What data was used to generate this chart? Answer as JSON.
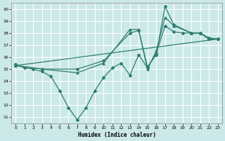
{
  "xlabel": "Humidex (Indice chaleur)",
  "background_color": "#cce9e9",
  "grid_color": "#ffffff",
  "line_color": "#2e7d6e",
  "xlim": [
    -0.5,
    23.5
  ],
  "ylim": [
    10.5,
    20.5
  ],
  "xticks": [
    0,
    1,
    2,
    3,
    4,
    5,
    6,
    7,
    8,
    9,
    10,
    11,
    12,
    13,
    14,
    15,
    16,
    17,
    18,
    19,
    20,
    21,
    22,
    23
  ],
  "yticks": [
    11,
    12,
    13,
    14,
    15,
    16,
    17,
    18,
    19,
    20
  ],
  "series1_detail": {
    "x": [
      0,
      1,
      2,
      3,
      4,
      5,
      6,
      7,
      8,
      9,
      10,
      11,
      12,
      13,
      14,
      15,
      16,
      17,
      18,
      19,
      20,
      21,
      22,
      23
    ],
    "y": [
      15.4,
      15.1,
      15.0,
      14.8,
      14.4,
      13.2,
      11.8,
      10.8,
      11.8,
      13.2,
      14.3,
      15.1,
      15.5,
      14.5,
      16.2,
      15.1,
      16.3,
      18.6,
      18.1,
      18.0,
      18.0,
      18.0,
      17.5,
      17.5
    ]
  },
  "series2_straight": {
    "x": [
      0,
      23
    ],
    "y": [
      15.3,
      17.5
    ]
  },
  "series3_smooth": {
    "x": [
      0,
      3,
      7,
      10,
      13,
      14,
      15,
      16,
      17,
      18,
      20,
      21,
      22,
      23
    ],
    "y": [
      15.3,
      15.0,
      14.7,
      15.5,
      18.3,
      18.3,
      15.0,
      16.5,
      19.3,
      18.6,
      18.0,
      18.0,
      17.5,
      17.5
    ]
  },
  "series4_mid": {
    "x": [
      0,
      3,
      7,
      10,
      13,
      14,
      15,
      16,
      17,
      18,
      20,
      21,
      22,
      23
    ],
    "y": [
      15.3,
      15.0,
      15.0,
      15.7,
      18.0,
      18.2,
      15.2,
      16.2,
      20.2,
      18.7,
      18.0,
      18.0,
      17.6,
      17.5
    ]
  }
}
